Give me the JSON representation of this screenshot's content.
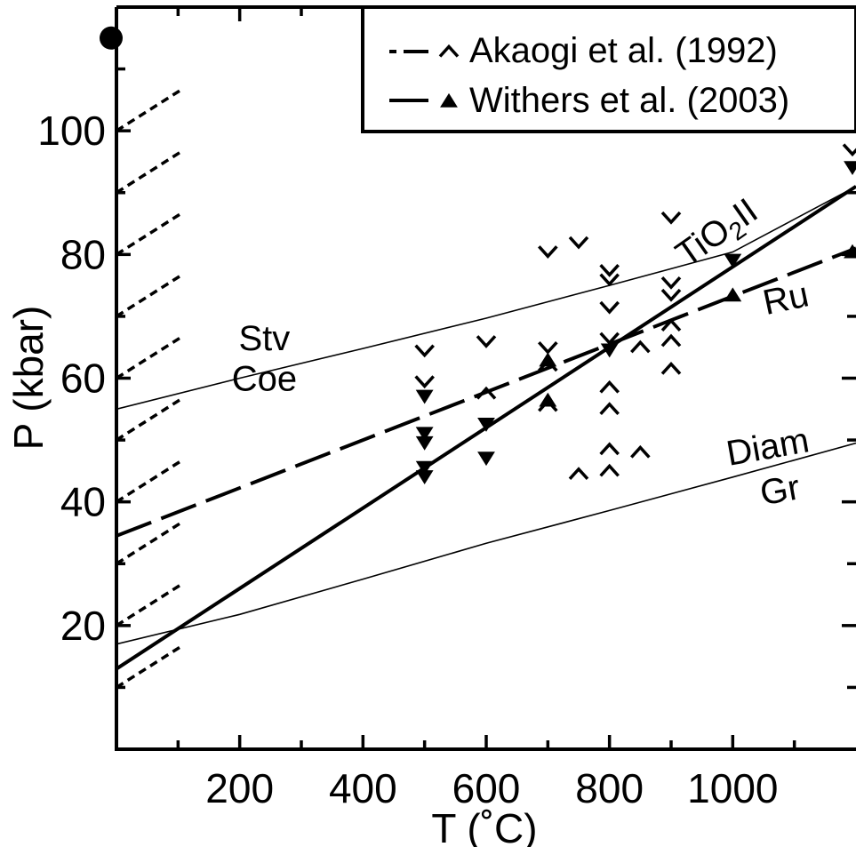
{
  "chart_data": {
    "type": "scatter",
    "xlabel": "T  (˚C)",
    "ylabel": "P (kbar)",
    "xlim": [
      0,
      1200
    ],
    "ylim": [
      0,
      120
    ],
    "x_ticks": [
      200,
      400,
      600,
      800,
      1000
    ],
    "y_ticks": [
      20,
      40,
      60,
      80,
      100
    ],
    "x_tick_labels": [
      "200",
      "400",
      "600",
      "800",
      "1000"
    ],
    "y_tick_labels": [
      "20",
      "40",
      "60",
      "80",
      "100"
    ],
    "legend": {
      "position": "top-right",
      "entries": [
        {
          "label": "Akaogi et al. (1992)",
          "line_style": "dash-dot",
          "marker": "caret"
        },
        {
          "label": "Withers et al. (2003)",
          "line_style": "solid",
          "marker": "triangle-up"
        }
      ]
    },
    "phase_labels": [
      {
        "text": "Stv",
        "x": 240,
        "y": 64.5
      },
      {
        "text": "Coe",
        "x": 240,
        "y": 58
      },
      {
        "text": "TiO2II",
        "x": 985,
        "y": 82,
        "rotation_deg": -35
      },
      {
        "text": "Ru",
        "x": 1090,
        "y": 71,
        "rotation_deg": -12
      },
      {
        "text": "Diam",
        "x": 1060,
        "y": 47,
        "rotation_deg": -10
      },
      {
        "text": "Gr",
        "x": 1080,
        "y": 40,
        "rotation_deg": -10
      }
    ],
    "boundaries": [
      {
        "name": "Stv-Coe",
        "style": "thin",
        "x": [
          0,
          200,
          400,
          600,
          800,
          1000,
          1200
        ],
        "y": [
          55,
          60,
          64.8,
          69.7,
          75,
          80.4,
          91
        ]
      },
      {
        "name": "Diam-Gr",
        "style": "thin",
        "x": [
          0,
          200,
          400,
          600,
          800,
          1000,
          1200
        ],
        "y": [
          17,
          21.8,
          27.5,
          33.3,
          38.6,
          44,
          49.5
        ]
      },
      {
        "name": "TiO2II-Ru (Akaogi et al. 1992)",
        "style": "long-dash",
        "x": [
          0,
          1200
        ],
        "y": [
          34.5,
          81
        ]
      },
      {
        "name": "TiO2II-Ru (Withers et al. 2003)",
        "style": "solid",
        "x": [
          0,
          1200
        ],
        "y": [
          13,
          91
        ]
      }
    ],
    "series": [
      {
        "name": "Akaogi et al. (1992)",
        "marker": "caret",
        "points": [
          {
            "x": 500,
            "y": 64.5,
            "dir": "down"
          },
          {
            "x": 500,
            "y": 59.5,
            "dir": "down"
          },
          {
            "x": 600,
            "y": 66,
            "dir": "down"
          },
          {
            "x": 600,
            "y": 57.5,
            "dir": "up"
          },
          {
            "x": 700,
            "y": 80.5,
            "dir": "down"
          },
          {
            "x": 700,
            "y": 65,
            "dir": "down"
          },
          {
            "x": 700,
            "y": 62,
            "dir": "up"
          },
          {
            "x": 700,
            "y": 55.5,
            "dir": "up"
          },
          {
            "x": 750,
            "y": 82,
            "dir": "down"
          },
          {
            "x": 800,
            "y": 77.5,
            "dir": "down"
          },
          {
            "x": 800,
            "y": 76,
            "dir": "down"
          },
          {
            "x": 800,
            "y": 71.5,
            "dir": "down"
          },
          {
            "x": 800,
            "y": 66.5,
            "dir": "down"
          },
          {
            "x": 800,
            "y": 58.5,
            "dir": "up"
          },
          {
            "x": 800,
            "y": 55,
            "dir": "up"
          },
          {
            "x": 800,
            "y": 48.5,
            "dir": "up"
          },
          {
            "x": 800,
            "y": 45,
            "dir": "up"
          },
          {
            "x": 750,
            "y": 44.5,
            "dir": "up"
          },
          {
            "x": 850,
            "y": 48,
            "dir": "up"
          },
          {
            "x": 850,
            "y": 65,
            "dir": "up"
          },
          {
            "x": 900,
            "y": 86,
            "dir": "down"
          },
          {
            "x": 900,
            "y": 75.5,
            "dir": "down"
          },
          {
            "x": 900,
            "y": 73.5,
            "dir": "down"
          },
          {
            "x": 900,
            "y": 68.5,
            "dir": "up"
          },
          {
            "x": 900,
            "y": 66,
            "dir": "up"
          },
          {
            "x": 900,
            "y": 61.5,
            "dir": "up"
          },
          {
            "x": 1200,
            "y": 97,
            "dir": "down"
          }
        ]
      },
      {
        "name": "Withers et al. (2003)",
        "marker": "triangle",
        "points": [
          {
            "x": 500,
            "y": 57,
            "dir": "down"
          },
          {
            "x": 500,
            "y": 51,
            "dir": "down"
          },
          {
            "x": 500,
            "y": 49.5,
            "dir": "down"
          },
          {
            "x": 500,
            "y": 45.5,
            "dir": "down"
          },
          {
            "x": 500,
            "y": 44,
            "dir": "down"
          },
          {
            "x": 600,
            "y": 52.5,
            "dir": "down"
          },
          {
            "x": 600,
            "y": 47,
            "dir": "down"
          },
          {
            "x": 700,
            "y": 63,
            "dir": "up"
          },
          {
            "x": 700,
            "y": 56.5,
            "dir": "up"
          },
          {
            "x": 800,
            "y": 64.5,
            "dir": "down"
          },
          {
            "x": 1000,
            "y": 79,
            "dir": "down"
          },
          {
            "x": 1000,
            "y": 73.5,
            "dir": "up"
          },
          {
            "x": 1200,
            "y": 94,
            "dir": "down"
          },
          {
            "x": 1200,
            "y": 80.5,
            "dir": "up"
          }
        ]
      }
    ],
    "left_edge_dashed_segments_y0": [
      10,
      20,
      30,
      40,
      50,
      60,
      70,
      80,
      90,
      100
    ],
    "left_edge_filled_circle": {
      "x": 0,
      "y": 115
    }
  }
}
